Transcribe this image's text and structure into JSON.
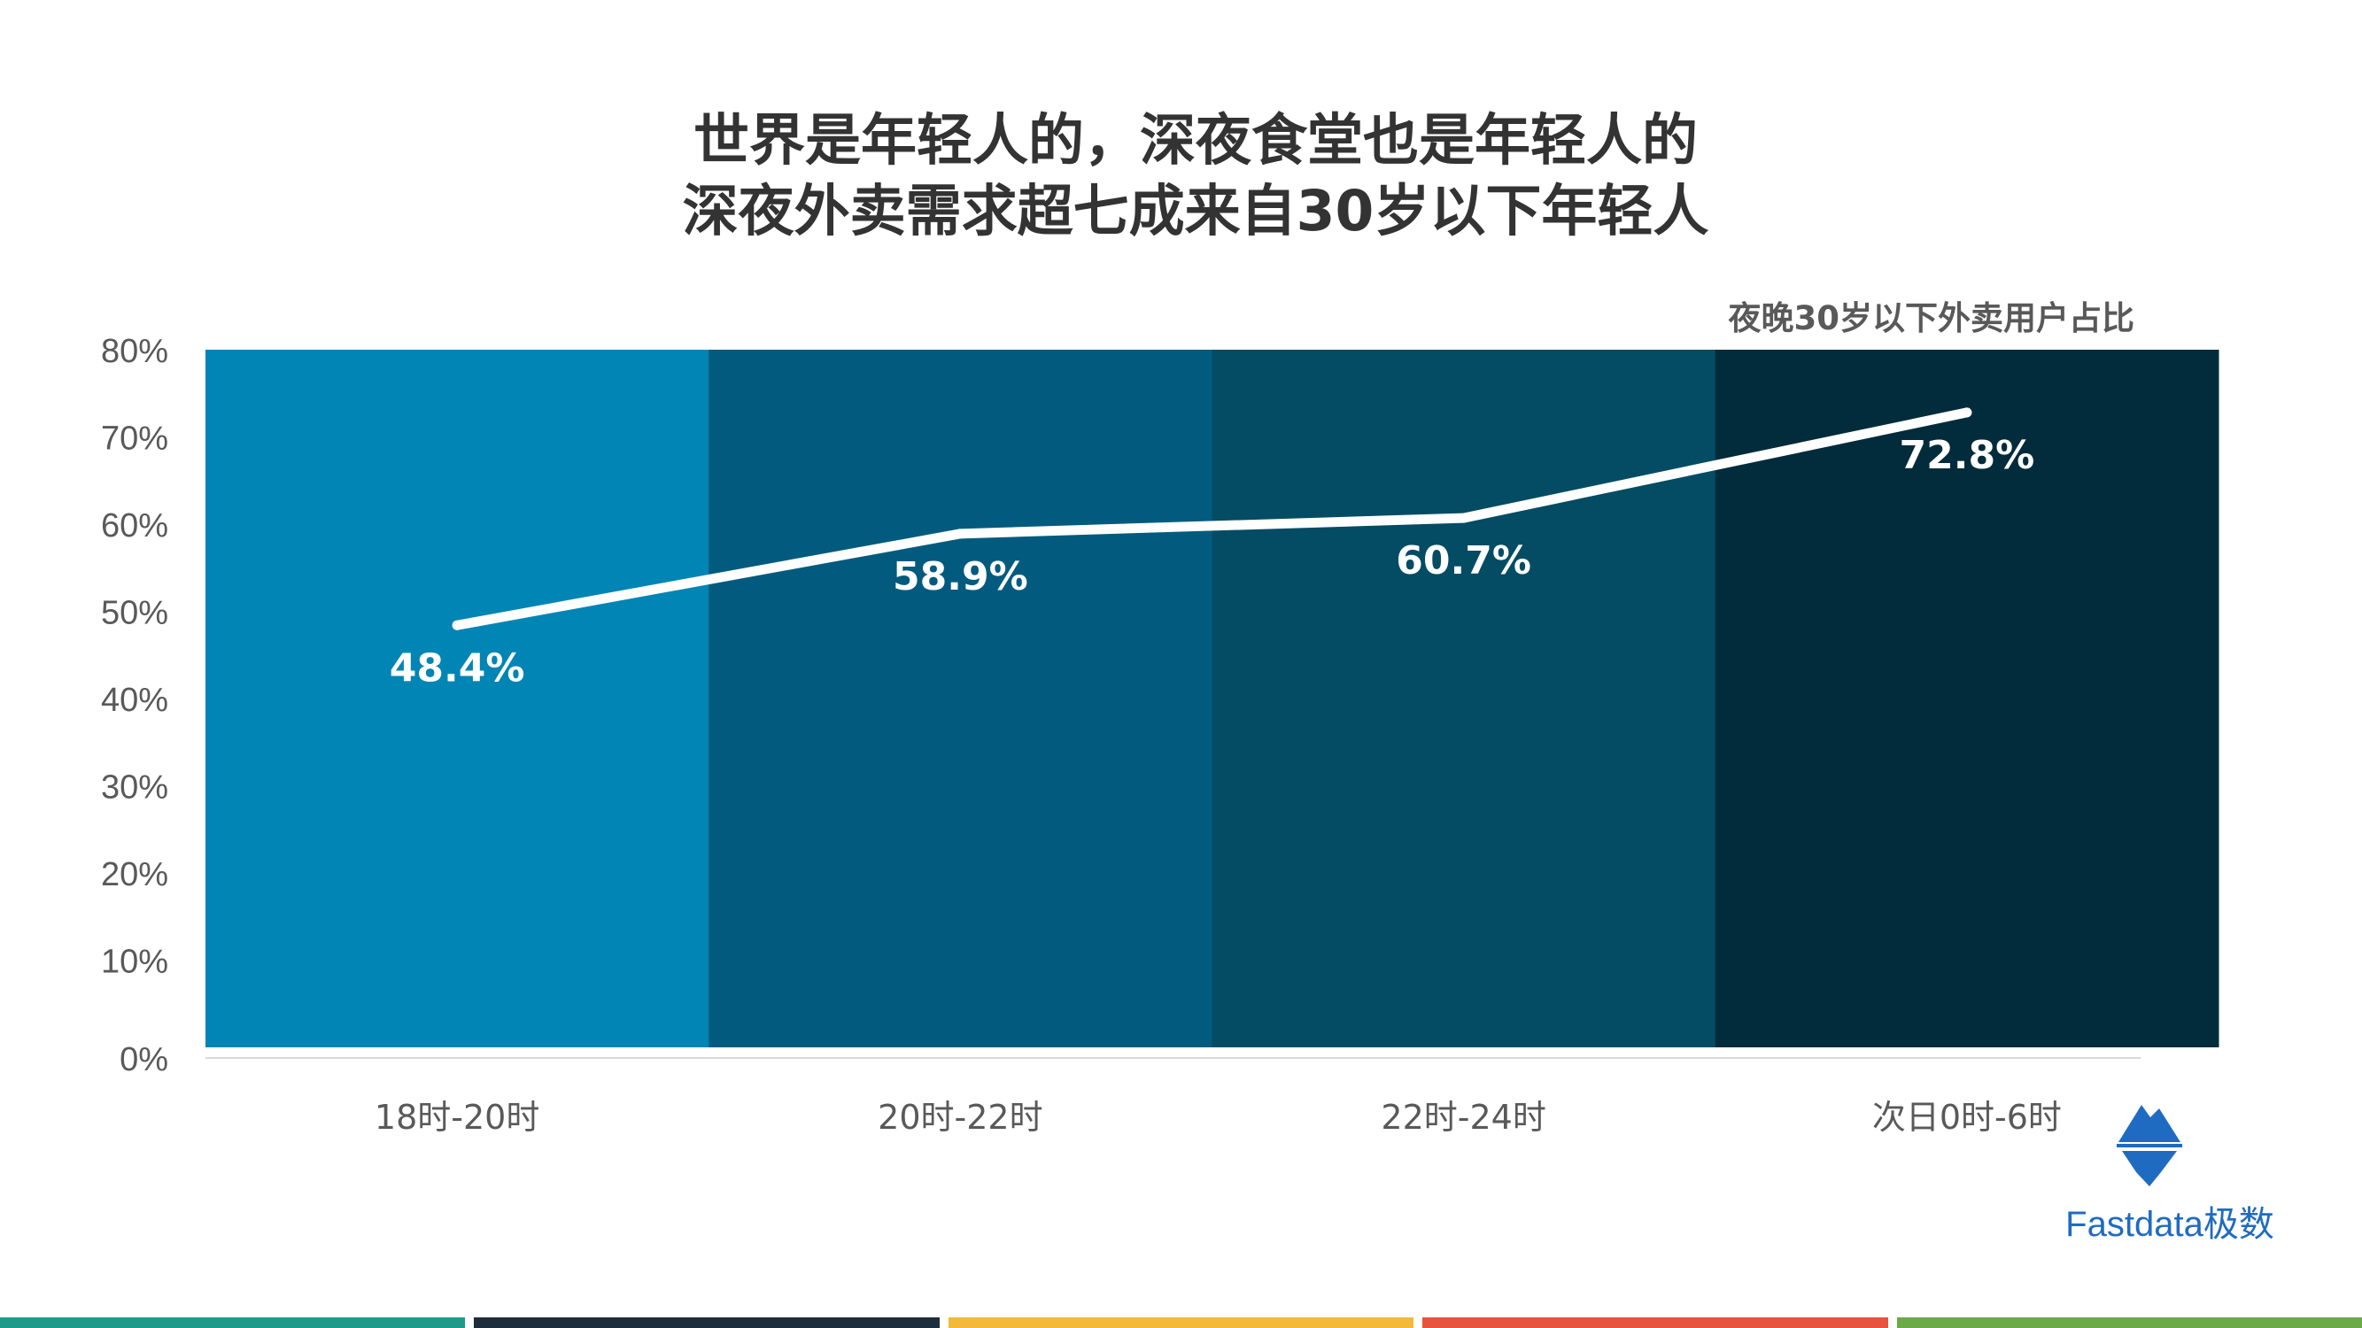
{
  "header": {
    "title_line1": "世界是年轻人的，深夜食堂也是年轻人的",
    "title_line2": "深夜外卖需求超七成来自30岁以下年轻人"
  },
  "chart_data": {
    "type": "line",
    "subtitle": "夜晚30岁以下外卖用户占比",
    "categories": [
      "18时-20时",
      "20时-22时",
      "22时-24时",
      "次日0时-6时"
    ],
    "values": [
      48.4,
      58.9,
      60.7,
      72.8
    ],
    "data_labels": [
      "48.4%",
      "58.9%",
      "60.7%",
      "72.8%"
    ],
    "ylim": [
      0,
      80
    ],
    "yticks": [
      "0%",
      "10%",
      "20%",
      "30%",
      "40%",
      "50%",
      "60%",
      "70%",
      "80%"
    ],
    "background_bands": [
      "#0085b5",
      "#025b7e",
      "#034c64",
      "#022c3b"
    ],
    "line_color": "#ffffff",
    "grid": false
  },
  "logo": {
    "text": "Fastdata极数",
    "color": "#1f6bc1"
  },
  "footer_stripes": [
    "#1f9a8a",
    "#1e2d3b",
    "#f2b93b",
    "#e8533f",
    "#6aaa48"
  ]
}
